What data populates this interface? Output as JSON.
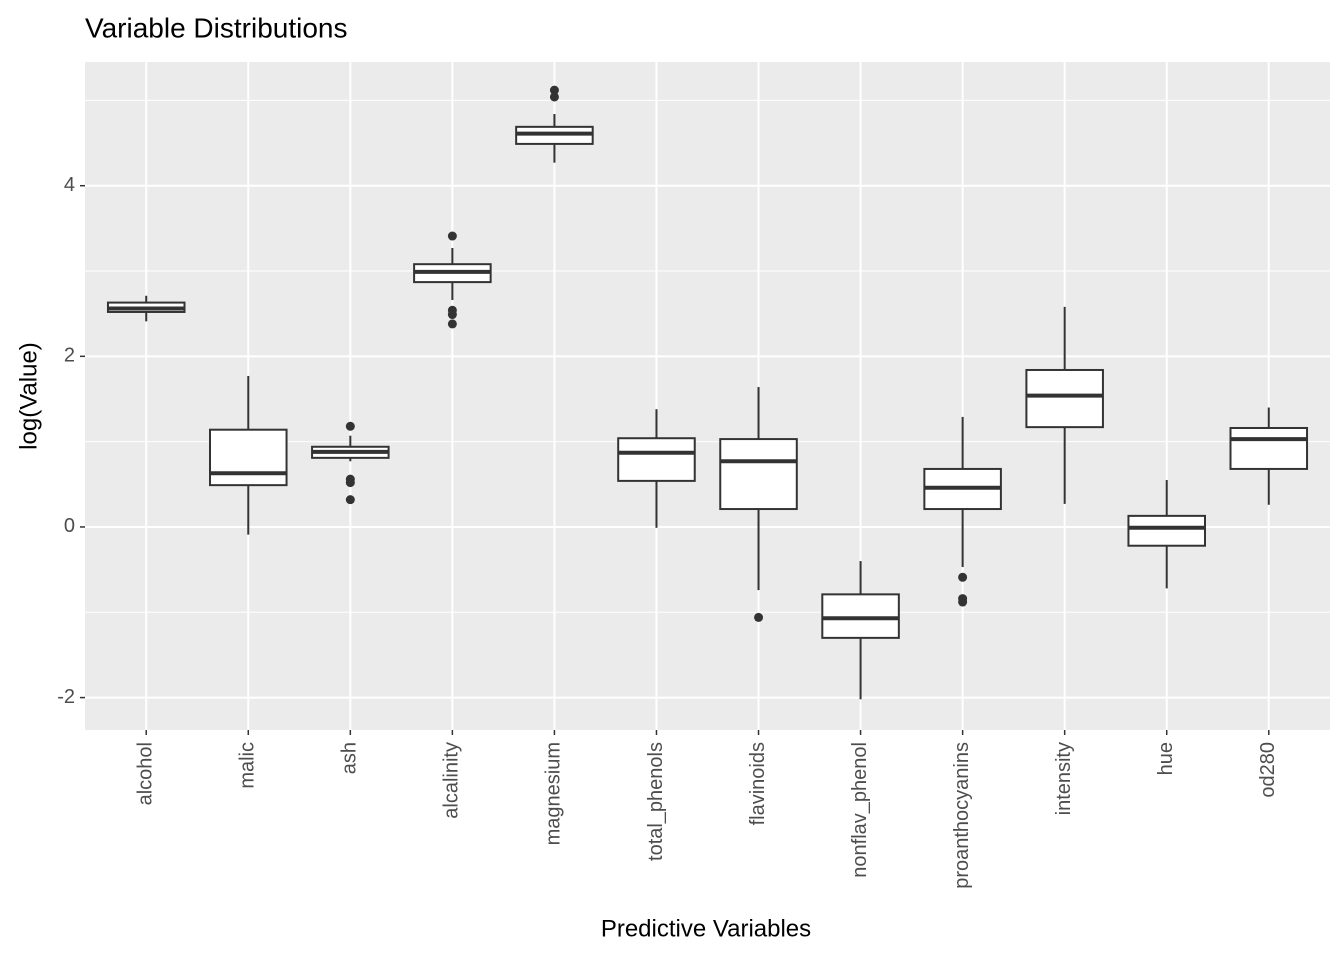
{
  "chart_data": {
    "type": "box",
    "title": "Variable Distributions",
    "x_label": "Predictive Variables",
    "y_label": "log(Value)",
    "categories": [
      "alcohol",
      "malic",
      "ash",
      "alcalinity",
      "magnesium",
      "total_phenols",
      "flavinoids",
      "nonflav_phenol",
      "proanthocyanins",
      "intensity",
      "hue",
      "od280"
    ],
    "boxes": [
      {
        "min": 2.41,
        "q1": 2.52,
        "median": 2.56,
        "q3": 2.63,
        "max": 2.71,
        "outliers": []
      },
      {
        "min": -0.09,
        "q1": 0.49,
        "median": 0.63,
        "q3": 1.14,
        "max": 1.77,
        "outliers": []
      },
      {
        "min": 0.77,
        "q1": 0.81,
        "median": 0.88,
        "q3": 0.94,
        "max": 1.07,
        "outliers": [
          1.18,
          0.56,
          0.52,
          0.32
        ]
      },
      {
        "min": 2.66,
        "q1": 2.87,
        "median": 2.99,
        "q3": 3.08,
        "max": 3.27,
        "outliers": [
          3.41,
          2.54,
          2.49,
          2.38
        ]
      },
      {
        "min": 4.27,
        "q1": 4.49,
        "median": 4.61,
        "q3": 4.69,
        "max": 4.84,
        "outliers": [
          5.12,
          5.04
        ]
      },
      {
        "min": -0.01,
        "q1": 0.54,
        "median": 0.87,
        "q3": 1.04,
        "max": 1.38,
        "outliers": []
      },
      {
        "min": -0.74,
        "q1": 0.21,
        "median": 0.77,
        "q3": 1.03,
        "max": 1.64,
        "outliers": [
          -1.06
        ]
      },
      {
        "min": -2.02,
        "q1": -1.3,
        "median": -1.07,
        "q3": -0.79,
        "max": -0.4,
        "outliers": []
      },
      {
        "min": -0.47,
        "q1": 0.21,
        "median": 0.46,
        "q3": 0.68,
        "max": 1.29,
        "outliers": [
          -0.59,
          -0.84,
          -0.88
        ]
      },
      {
        "min": 0.27,
        "q1": 1.17,
        "median": 1.54,
        "q3": 1.84,
        "max": 2.58,
        "outliers": []
      },
      {
        "min": -0.72,
        "q1": -0.22,
        "median": -0.01,
        "q3": 0.13,
        "max": 0.55,
        "outliers": []
      },
      {
        "min": 0.26,
        "q1": 0.68,
        "median": 1.03,
        "q3": 1.16,
        "max": 1.4,
        "outliers": []
      }
    ],
    "ylim": [
      -2.38,
      5.45
    ],
    "yticks": [
      -2,
      0,
      2,
      4
    ],
    "minor_yticks": [
      -1,
      1,
      3,
      5
    ],
    "grid": true,
    "panel_color": "#ebebeb",
    "box_fill": "#ffffff",
    "box_color": "#333333"
  }
}
